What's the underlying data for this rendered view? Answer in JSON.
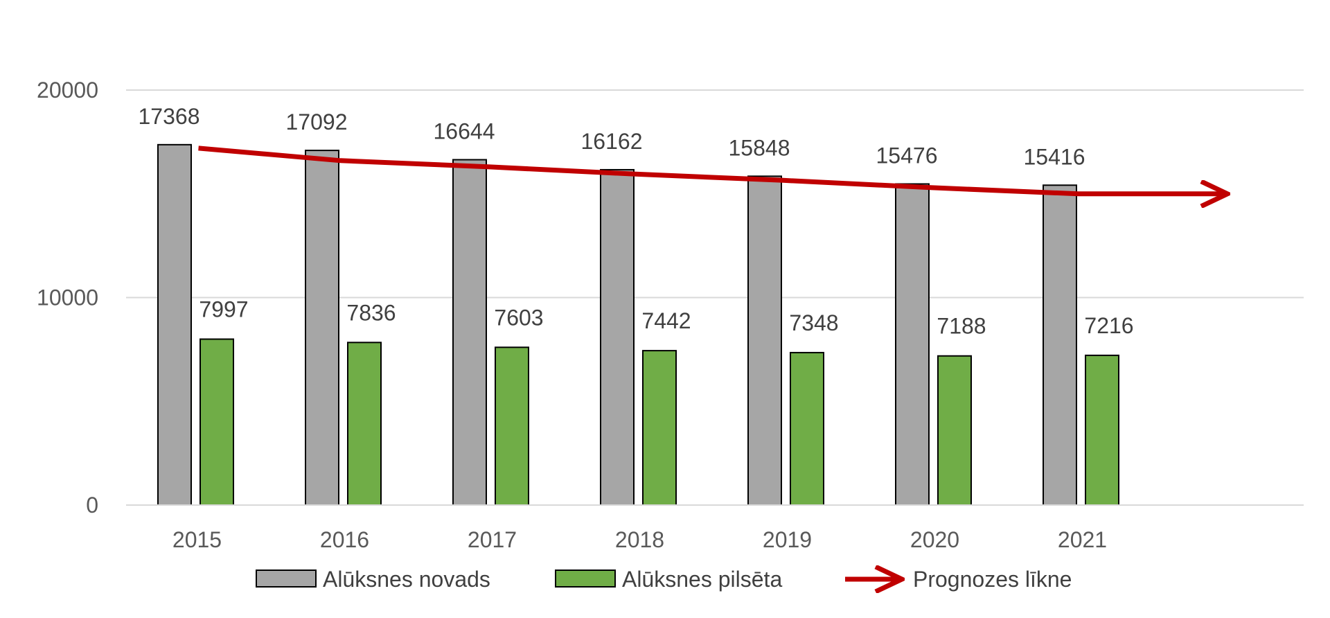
{
  "chart_data": {
    "type": "bar",
    "categories": [
      "2015",
      "2016",
      "2017",
      "2018",
      "2019",
      "2020",
      "2021"
    ],
    "series": [
      {
        "name": "Alūksnes novads",
        "values": [
          17368,
          17092,
          16644,
          16162,
          15848,
          15476,
          15416
        ],
        "color": "#a6a6a6"
      },
      {
        "name": "Alūksnes pilsēta",
        "values": [
          7997,
          7836,
          7603,
          7442,
          7348,
          7188,
          7216
        ],
        "color": "#70ad47"
      }
    ],
    "trend": {
      "name": "Prognozes līkne",
      "type": "line",
      "color": "#c00000",
      "arrow": true,
      "points": [
        {
          "x": "2015",
          "y": 17200
        },
        {
          "x": "2016",
          "y": 16600
        },
        {
          "x": "2017",
          "y": 16300
        },
        {
          "x": "2018",
          "y": 15950
        },
        {
          "x": "2019",
          "y": 15650
        },
        {
          "x": "2020",
          "y": 15300
        },
        {
          "x": "2021",
          "y": 15000
        },
        {
          "x": "2022",
          "y": 15000
        }
      ]
    },
    "yticks": [
      "0",
      "10000",
      "20000"
    ],
    "ylim": [
      0,
      20000
    ],
    "grid": true,
    "legend": "bottom",
    "title": "",
    "xlabel": "",
    "ylabel": ""
  }
}
